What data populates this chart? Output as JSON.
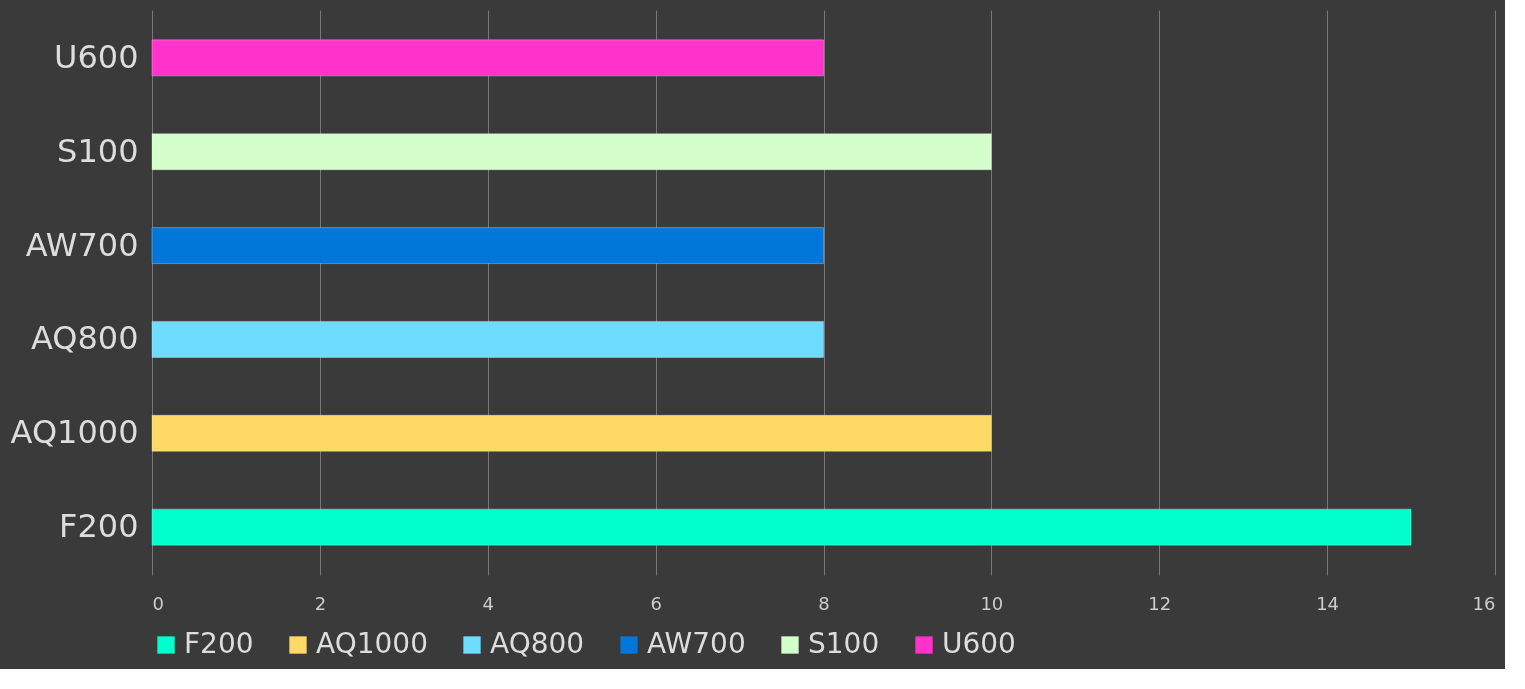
{
  "chart_data": {
    "type": "bar",
    "orientation": "horizontal",
    "categories": [
      "U600",
      "S100",
      "AW700",
      "AQ800",
      "AQ1000",
      "F200"
    ],
    "series": [
      {
        "name": "F200",
        "color": "#00ffcc",
        "values": [
          null,
          null,
          null,
          null,
          null,
          15
        ]
      },
      {
        "name": "AQ1000",
        "color": "#ffd966",
        "values": [
          null,
          null,
          null,
          null,
          10,
          null
        ]
      },
      {
        "name": "AQ800",
        "color": "#6ddcff",
        "values": [
          null,
          null,
          null,
          8,
          null,
          null
        ]
      },
      {
        "name": "AW700",
        "color": "#0077d9",
        "values": [
          null,
          null,
          8,
          null,
          null,
          null
        ]
      },
      {
        "name": "S100",
        "color": "#d4ffcc",
        "values": [
          null,
          10,
          null,
          null,
          null,
          null
        ]
      },
      {
        "name": "U600",
        "color": "#ff33cc",
        "values": [
          8,
          null,
          null,
          null,
          null,
          null
        ]
      }
    ],
    "xlim": [
      0,
      16
    ],
    "xticks": [
      0,
      2,
      4,
      6,
      8,
      10,
      12,
      14,
      16
    ],
    "grid": "x",
    "legend": "bottom"
  }
}
